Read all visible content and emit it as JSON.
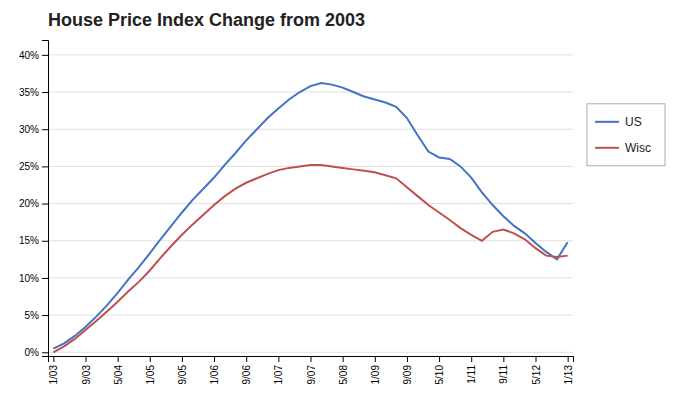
{
  "chart_data": {
    "type": "line",
    "title": "House Price Index Change from 2003",
    "categories": [
      "1/03",
      null,
      null,
      "9/03",
      null,
      null,
      "5/04",
      null,
      null,
      "1/05",
      null,
      null,
      "9/05",
      null,
      null,
      "1/06",
      null,
      null,
      "9/06",
      null,
      null,
      "1/07",
      null,
      null,
      "9/07",
      null,
      null,
      "5/08",
      null,
      null,
      "1/09",
      null,
      null,
      "9/09",
      null,
      null,
      "5/10",
      null,
      null,
      "1/11",
      null,
      null,
      "9/11",
      null,
      null,
      "5/12",
      null,
      null,
      "1/13"
    ],
    "series": [
      {
        "name": "US",
        "color": "#4472C4",
        "values": [
          0.005,
          0.012,
          0.022,
          0.034,
          0.048,
          0.063,
          0.08,
          0.098,
          0.115,
          0.133,
          0.152,
          0.17,
          0.188,
          0.205,
          0.22,
          0.235,
          0.252,
          0.268,
          0.285,
          0.3,
          0.315,
          0.328,
          0.34,
          0.35,
          0.358,
          0.362,
          0.36,
          0.356,
          0.35,
          0.344,
          0.34,
          0.336,
          0.33,
          0.315,
          0.292,
          0.27,
          0.262,
          0.26,
          0.25,
          0.235,
          0.215,
          0.198,
          0.183,
          0.17,
          0.16,
          0.147,
          0.135,
          0.125,
          0.148
        ]
      },
      {
        "name": "Wisc",
        "color": "#C0504D",
        "values": [
          0.0,
          0.008,
          0.018,
          0.03,
          0.042,
          0.055,
          0.068,
          0.082,
          0.095,
          0.11,
          0.127,
          0.143,
          0.158,
          0.172,
          0.185,
          0.198,
          0.21,
          0.22,
          0.228,
          0.234,
          0.24,
          0.245,
          0.248,
          0.25,
          0.252,
          0.252,
          0.25,
          0.248,
          0.246,
          0.244,
          0.242,
          0.238,
          0.234,
          0.222,
          0.21,
          0.198,
          0.188,
          0.178,
          0.167,
          0.158,
          0.15,
          0.162,
          0.165,
          0.16,
          0.152,
          0.14,
          0.13,
          0.128,
          0.13
        ]
      }
    ],
    "ylim": [
      -0.005,
      0.42
    ],
    "yticks": [
      {
        "value": 0.0,
        "label": "0%"
      },
      {
        "value": 0.05,
        "label": "5%"
      },
      {
        "value": 0.1,
        "label": "10%"
      },
      {
        "value": 0.15,
        "label": "15%"
      },
      {
        "value": 0.2,
        "label": "20%"
      },
      {
        "value": 0.25,
        "label": "25%"
      },
      {
        "value": 0.3,
        "label": "30%"
      },
      {
        "value": 0.35,
        "label": "35%"
      },
      {
        "value": 0.4,
        "label": "40%"
      }
    ],
    "grid": true,
    "legend": "right"
  }
}
